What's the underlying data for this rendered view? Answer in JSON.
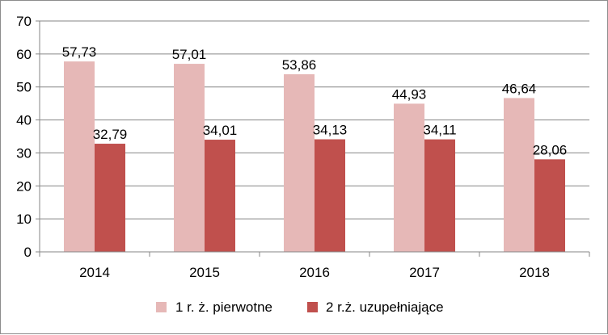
{
  "chart_data": {
    "type": "bar",
    "categories": [
      "2014",
      "2015",
      "2016",
      "2017",
      "2018"
    ],
    "series": [
      {
        "name": "1 r. ż. pierwotne",
        "values": [
          57.73,
          57.01,
          53.86,
          44.93,
          46.64
        ],
        "labels": [
          "57,73",
          "57,01",
          "53,86",
          "44,93",
          "46,64"
        ],
        "color": "#e6b8b7"
      },
      {
        "name": "2 r.ż. uzupełniające",
        "values": [
          32.79,
          34.01,
          34.13,
          34.11,
          28.06
        ],
        "labels": [
          "32,79",
          "34,01",
          "34,13",
          "34,11",
          "28,06"
        ],
        "color": "#c0504d"
      }
    ],
    "yticks": [
      "0",
      "10",
      "20",
      "30",
      "40",
      "50",
      "60",
      "70"
    ],
    "ylim": [
      0,
      70
    ],
    "grid": true,
    "gridColor": "#868686",
    "legend": "bottom"
  }
}
